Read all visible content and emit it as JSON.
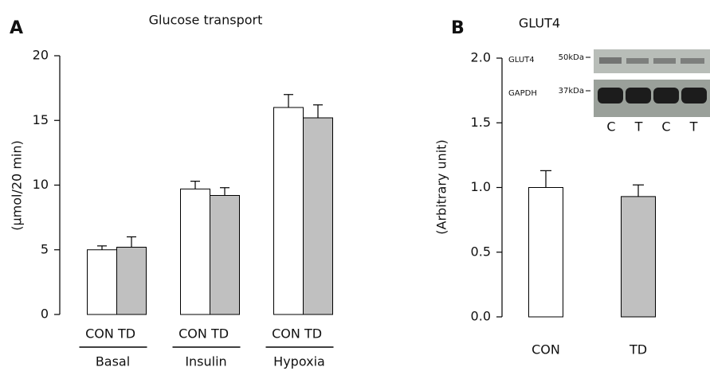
{
  "chart_data": [
    {
      "type": "bar",
      "panel": "A",
      "title": "Glucose transport",
      "y_label": "(μmol/20 min)",
      "categories": [
        "Basal",
        "Insulin",
        "Hypoxia"
      ],
      "series": [
        {
          "name": "CON",
          "color": "#ffffff",
          "values": [
            5.0,
            9.7,
            16.0
          ],
          "errors": [
            0.3,
            0.6,
            1.0
          ]
        },
        {
          "name": "TD",
          "color": "#c0c0c0",
          "values": [
            5.2,
            9.2,
            15.2
          ],
          "errors": [
            0.8,
            0.6,
            1.0
          ]
        }
      ],
      "ylim": [
        0,
        20
      ],
      "yticks": [
        0,
        5,
        10,
        15,
        20
      ]
    },
    {
      "type": "bar",
      "panel": "B",
      "title": "GLUT4",
      "y_label": "(Arbitrary unit)",
      "categories": [
        "CON",
        "TD"
      ],
      "values": [
        1.0,
        0.93
      ],
      "errors": [
        0.13,
        0.09
      ],
      "colors": [
        "#ffffff",
        "#c0c0c0"
      ],
      "ylim": [
        0,
        2
      ],
      "yticks": [
        {
          "value": 0,
          "label": "0.0"
        },
        0.5,
        {
          "value": 1,
          "label": "1.0"
        },
        1.5,
        {
          "value": 2,
          "label": "2.0"
        }
      ],
      "inset": {
        "rows": [
          {
            "name": "GLUT4",
            "marker": "50kDa"
          },
          {
            "name": "GAPDH",
            "marker": "37kDa"
          }
        ],
        "lanes": [
          "C",
          "T",
          "C",
          "T"
        ]
      }
    }
  ]
}
